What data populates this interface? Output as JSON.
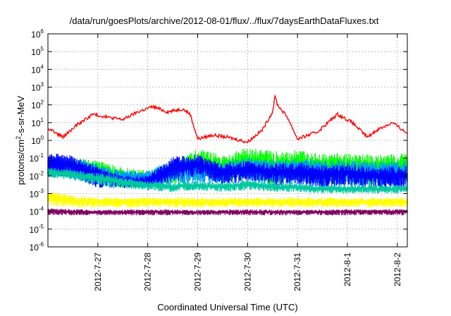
{
  "chart_data": {
    "type": "line",
    "title": "/data/run/goesPlots/archive/2012-08-01/flux/../flux/7daysEarthDataFluxes.txt",
    "xlabel": "Coordinated Universal Time (UTC)",
    "ylabel": "protons/cm2-s-sr-MeV",
    "ylabel_base": "protons/cm",
    "ylabel_sup": "2",
    "ylabel_rest": "-s-sr-MeV",
    "yscale": "log",
    "ylim": [
      1e-06,
      1000000.0
    ],
    "xlim": [
      0,
      7.2
    ],
    "x_unit": "days since 2012-07-26 00:00 UTC",
    "grid": true,
    "legend": "none",
    "x_ticks": [
      {
        "x": 1,
        "label": "2012-7-27"
      },
      {
        "x": 2,
        "label": "2012-7-28"
      },
      {
        "x": 3,
        "label": "2012-7-29"
      },
      {
        "x": 4,
        "label": "2012-7-30"
      },
      {
        "x": 5,
        "label": "2012-7-31"
      },
      {
        "x": 6,
        "label": "2012-8-1"
      },
      {
        "x": 7,
        "label": "2012-8-2"
      }
    ],
    "y_ticks": [
      {
        "exp": -6,
        "base": "10",
        "sup": "-6"
      },
      {
        "exp": -5,
        "base": "10",
        "sup": "-5"
      },
      {
        "exp": -4,
        "base": "10",
        "sup": "-4"
      },
      {
        "exp": -3,
        "base": "10",
        "sup": "-3"
      },
      {
        "exp": -2,
        "base": "10",
        "sup": "-2"
      },
      {
        "exp": -1,
        "base": "10",
        "sup": "-1"
      },
      {
        "exp": 0,
        "base": "10",
        "sup": "0"
      },
      {
        "exp": 1,
        "base": "10",
        "sup": "1"
      },
      {
        "exp": 2,
        "base": "10",
        "sup": "2"
      },
      {
        "exp": 3,
        "base": "10",
        "sup": "3"
      },
      {
        "exp": 4,
        "base": "10",
        "sup": "4"
      },
      {
        "exp": 5,
        "base": "10",
        "sup": "5"
      },
      {
        "exp": 6,
        "base": "10",
        "sup": "6"
      }
    ],
    "series": [
      {
        "color": "#800060",
        "band": true,
        "x": [
          0,
          1,
          2,
          3,
          4,
          5,
          6,
          7.2
        ],
        "y": [
          0.00015,
          0.00012,
          0.00013,
          0.00012,
          0.00013,
          0.00012,
          0.00013,
          0.00013
        ],
        "y_low": [
          6e-05,
          6e-05,
          6e-05,
          6e-05,
          6e-05,
          6e-05,
          6e-05,
          6e-05
        ]
      },
      {
        "color": "#ffff00",
        "band": true,
        "x": [
          0,
          0.5,
          1,
          2,
          3,
          4,
          5,
          6,
          7.2
        ],
        "y": [
          0.0015,
          0.0008,
          0.0006,
          0.0006,
          0.0006,
          0.0006,
          0.0006,
          0.0006,
          0.0006
        ],
        "y_low": [
          0.0002,
          0.00016,
          0.00016,
          0.00017,
          0.00016,
          0.00017,
          0.00017,
          0.00016,
          0.00017
        ]
      },
      {
        "color": "#00ff00",
        "band": true,
        "x": [
          0,
          0.5,
          1,
          1.5,
          2,
          2.5,
          3,
          3.5,
          4,
          4.5,
          5,
          5.5,
          6,
          6.5,
          7.2
        ],
        "y": [
          0.12,
          0.1,
          0.08,
          0.03,
          0.02,
          0.06,
          0.35,
          0.15,
          0.4,
          0.25,
          0.3,
          0.18,
          0.2,
          0.15,
          0.2
        ],
        "y_low": [
          0.01,
          0.008,
          0.004,
          0.002,
          0.002,
          0.003,
          0.005,
          0.004,
          0.006,
          0.003,
          0.004,
          0.003,
          0.003,
          0.002,
          0.003
        ]
      },
      {
        "color": "#0096ff",
        "band": true,
        "x": [
          0,
          0.5,
          1,
          1.5,
          2,
          2.5,
          3,
          3.5,
          4,
          4.5,
          5,
          5.5,
          6,
          6.5,
          7.2
        ],
        "y": [
          0.15,
          0.12,
          0.05,
          0.02,
          0.02,
          0.08,
          0.1,
          0.06,
          0.12,
          0.08,
          0.1,
          0.08,
          0.08,
          0.06,
          0.08
        ],
        "y_low": [
          0.008,
          0.006,
          0.002,
          0.002,
          0.002,
          0.003,
          0.004,
          0.003,
          0.005,
          0.003,
          0.003,
          0.002,
          0.002,
          0.002,
          0.002
        ]
      },
      {
        "color": "#0000ff",
        "band": true,
        "x": [
          0,
          0.5,
          1,
          1.5,
          2,
          2.5,
          3,
          3.5,
          4,
          4.5,
          5,
          5.5,
          6,
          6.5,
          7.2
        ],
        "y": [
          0.2,
          0.15,
          0.03,
          0.01,
          0.01,
          0.12,
          0.15,
          0.05,
          0.08,
          0.05,
          0.06,
          0.04,
          0.05,
          0.03,
          0.04
        ],
        "y_low": [
          0.01,
          0.008,
          0.002,
          0.002,
          0.002,
          0.005,
          0.01,
          0.003,
          0.005,
          0.003,
          0.003,
          0.002,
          0.003,
          0.002,
          0.002
        ]
      },
      {
        "color": "#00c8a0",
        "band": true,
        "x": [
          0,
          0.5,
          1,
          1.5,
          2,
          2.5,
          3,
          3.5,
          4,
          4.5,
          5,
          5.5,
          6,
          6.5,
          7.2
        ],
        "y": [
          0.03,
          0.02,
          0.015,
          0.008,
          0.005,
          0.004,
          0.005,
          0.004,
          0.006,
          0.004,
          0.004,
          0.003,
          0.003,
          0.003,
          0.003
        ],
        "y_low": [
          0.008,
          0.006,
          0.003,
          0.002,
          0.0015,
          0.0012,
          0.0015,
          0.0012,
          0.0015,
          0.0012,
          0.0012,
          0.001,
          0.001,
          0.001,
          0.001
        ]
      },
      {
        "color": "#ff0000",
        "band": false,
        "x": [
          0,
          0.3,
          0.6,
          0.9,
          1.2,
          1.5,
          1.8,
          2.1,
          2.4,
          2.7,
          2.85,
          3.0,
          3.3,
          3.6,
          4.0,
          4.3,
          4.5,
          4.55,
          4.6,
          4.8,
          5.0,
          5.4,
          5.8,
          6.1,
          6.4,
          6.6,
          6.9,
          7.2
        ],
        "y": [
          5,
          1.5,
          8,
          30,
          20,
          15,
          40,
          80,
          40,
          60,
          30,
          1.2,
          2,
          1.5,
          0.8,
          4,
          40,
          300,
          100,
          20,
          1.2,
          3,
          30,
          10,
          1.5,
          4,
          10,
          2.5
        ]
      }
    ]
  }
}
